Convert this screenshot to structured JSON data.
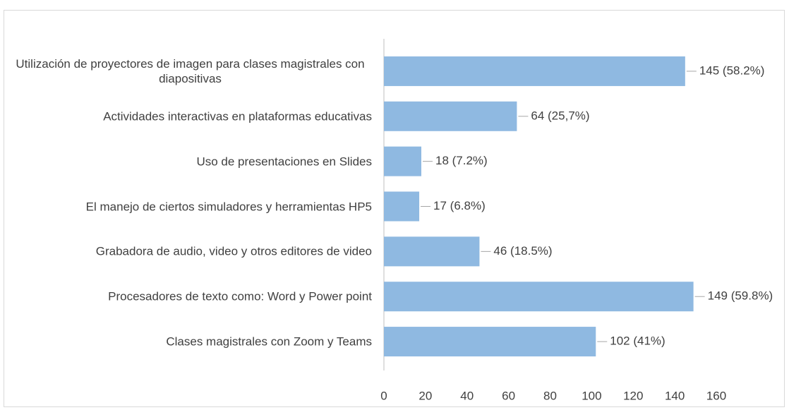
{
  "chart_data": {
    "type": "bar",
    "orientation": "horizontal",
    "categories": [
      "Utilización de proyectores de imagen para clases magistrales con diapositivas",
      "Actividades interactivas en plataformas educativas",
      "Uso de presentaciones en Slides",
      "El manejo de ciertos simuladores y herramientas HP5",
      "Grabadora de audio, video y otros editores de video",
      "Procesadores de texto como: Word y Power point",
      "Clases magistrales con Zoom y Teams"
    ],
    "values": [
      145,
      64,
      18,
      17,
      46,
      149,
      102
    ],
    "value_labels": [
      "145  (58.2%)",
      "64  (25,7%)",
      "18  (7.2%)",
      "17  (6.8%)",
      "46  (18.5%)",
      "149  (59.8%)",
      "102  (41%)"
    ],
    "color": "#8fb9e1",
    "xlim": [
      0,
      160
    ],
    "xticks": [
      0,
      20,
      40,
      60,
      80,
      100,
      120,
      140,
      160
    ],
    "grid": false
  }
}
